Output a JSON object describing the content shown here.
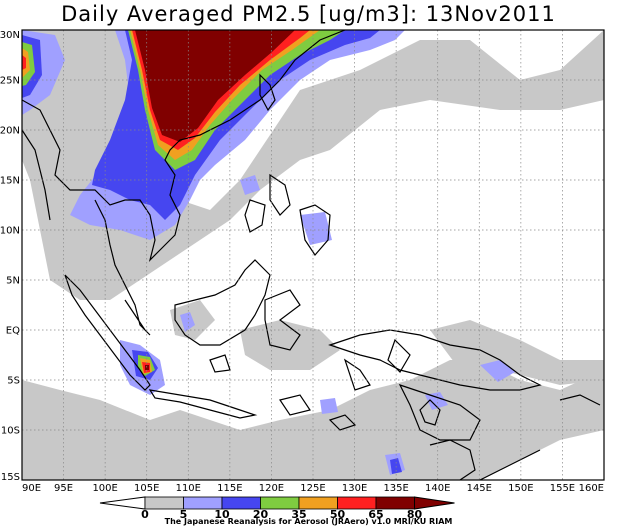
{
  "title": "Daily Averaged PM2.5 [ug/m3]: 13Nov2011",
  "credit": "The Japanese Reanalysis for Aerosol (JRAero) v1.0 MRI/KU RIAM",
  "map": {
    "extent": {
      "lon": [
        90,
        160
      ],
      "lat": [
        -15,
        30
      ]
    },
    "lon_ticks": [
      {
        "value": 90,
        "label": "90E"
      },
      {
        "value": 95,
        "label": "95E"
      },
      {
        "value": 100,
        "label": "100E"
      },
      {
        "value": 105,
        "label": "105E"
      },
      {
        "value": 110,
        "label": "110E"
      },
      {
        "value": 115,
        "label": "115E"
      },
      {
        "value": 120,
        "label": "120E"
      },
      {
        "value": 125,
        "label": "125E"
      },
      {
        "value": 130,
        "label": "130E"
      },
      {
        "value": 135,
        "label": "135E"
      },
      {
        "value": 140,
        "label": "140E"
      },
      {
        "value": 145,
        "label": "145E"
      },
      {
        "value": 150,
        "label": "150E"
      },
      {
        "value": 155,
        "label": "155E"
      },
      {
        "value": 160,
        "label": "160E"
      }
    ],
    "lat_ticks": [
      {
        "value": 30,
        "label": "30N"
      },
      {
        "value": 25,
        "label": "25N"
      },
      {
        "value": 20,
        "label": "20N"
      },
      {
        "value": 15,
        "label": "15N"
      },
      {
        "value": 10,
        "label": "10N"
      },
      {
        "value": 5,
        "label": "5N"
      },
      {
        "value": 0,
        "label": "EQ"
      },
      {
        "value": -5,
        "label": "5S"
      },
      {
        "value": -10,
        "label": "10S"
      },
      {
        "value": -15,
        "label": "15S"
      }
    ],
    "grid": true
  },
  "colorbar": {
    "levels": [
      "0",
      "5",
      "10",
      "20",
      "35",
      "50",
      "65",
      "80"
    ],
    "colors": [
      "#ffffff",
      "#c8c8c8",
      "#a0a0ff",
      "#4646f0",
      "#7fcc40",
      "#f0a020",
      "#ff2020",
      "#800000"
    ],
    "below_color": "#ffffff",
    "above_color": "#800000"
  }
}
